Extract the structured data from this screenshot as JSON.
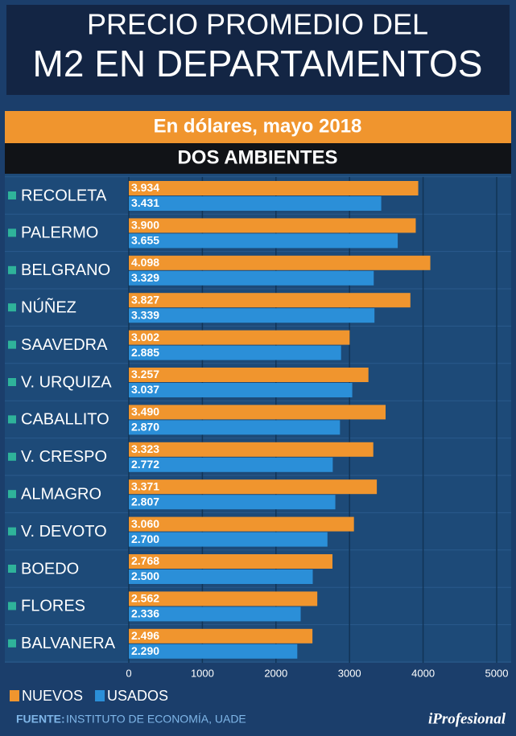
{
  "chart_data": {
    "type": "bar",
    "orientation": "horizontal",
    "title_lines": [
      "PRECIO PROMEDIO DEL",
      "M2 EN DEPARTAMENTOS"
    ],
    "subtitle": "En dólares, mayo 2018",
    "section": "DOS AMBIENTES",
    "categories": [
      "RECOLETA",
      "PALERMO",
      "BELGRANO",
      "NÚÑEZ",
      "SAAVEDRA",
      "V. URQUIZA",
      "CABALLITO",
      "V. CRESPO",
      "ALMAGRO",
      "V. DEVOTO",
      "BOEDO",
      "FLORES",
      "BALVANERA"
    ],
    "series": [
      {
        "name": "NUEVOS",
        "color": "#f0952e",
        "values": [
          3934,
          3900,
          4098,
          3827,
          3002,
          3257,
          3490,
          3323,
          3371,
          3060,
          2768,
          2562,
          2496
        ],
        "value_labels": [
          "3.934",
          "3.900",
          "4.098",
          "3.827",
          "3.002",
          "3.257",
          "3.490",
          "3.323",
          "3.371",
          "3.060",
          "2.768",
          "2.562",
          "2.496"
        ]
      },
      {
        "name": "USADOS",
        "color": "#2b8fd8",
        "values": [
          3431,
          3655,
          3329,
          3339,
          2885,
          3037,
          2870,
          2772,
          2807,
          2700,
          2500,
          2336,
          2290
        ],
        "value_labels": [
          "3.431",
          "3.655",
          "3.329",
          "3.339",
          "2.885",
          "3.037",
          "2.870",
          "2.772",
          "2.807",
          "2.700",
          "2.500",
          "2.336",
          "2.290"
        ]
      }
    ],
    "xlim": [
      0,
      5000
    ],
    "xticks": [
      0,
      1000,
      2000,
      3000,
      4000,
      5000
    ],
    "grid": true,
    "source_label": "FUENTE:",
    "source": "INSTITUTO DE ECONOMÍA, UADE",
    "brand": "iProfesional"
  }
}
